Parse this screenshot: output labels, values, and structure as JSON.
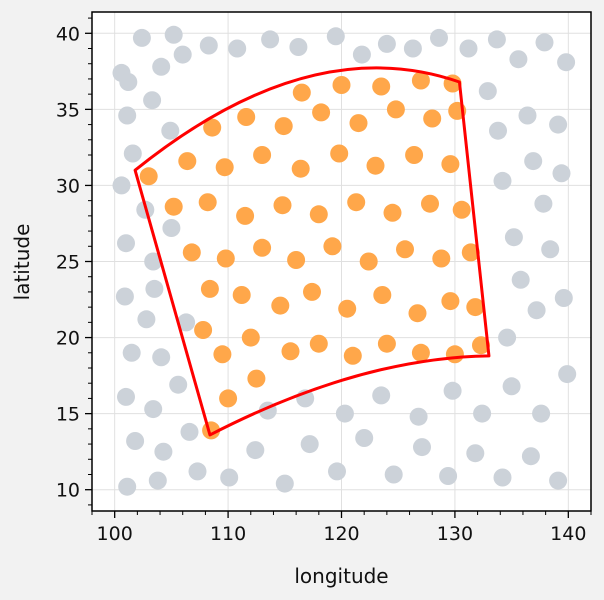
{
  "chart_data": {
    "type": "scatter",
    "title": "",
    "xlabel": "longitude",
    "ylabel": "latitude",
    "xlim": [
      98,
      142
    ],
    "ylim": [
      8.6,
      41.4
    ],
    "xticks": [
      100,
      110,
      120,
      130,
      140
    ],
    "yticks": [
      10,
      15,
      20,
      25,
      30,
      35,
      40
    ],
    "grid": true,
    "x_minor_step": 2,
    "y_minor_step": 1,
    "series": [
      {
        "points": [
          [
            102.4,
            39.7
          ],
          [
            105.2,
            39.9
          ],
          [
            100.6,
            37.4
          ],
          [
            104.1,
            37.8
          ],
          [
            101.2,
            36.8
          ],
          [
            106.0,
            38.6
          ],
          [
            108.3,
            39.2
          ],
          [
            110.8,
            39.0
          ],
          [
            113.7,
            39.6
          ],
          [
            116.2,
            39.1
          ],
          [
            119.5,
            39.8
          ],
          [
            121.8,
            38.6
          ],
          [
            124.0,
            39.3
          ],
          [
            126.3,
            39.0
          ],
          [
            128.6,
            39.7
          ],
          [
            131.2,
            39.0
          ],
          [
            133.7,
            39.6
          ],
          [
            135.6,
            38.3
          ],
          [
            137.9,
            39.4
          ],
          [
            139.8,
            38.1
          ],
          [
            101.1,
            34.6
          ],
          [
            103.3,
            35.6
          ],
          [
            104.9,
            33.6
          ],
          [
            101.6,
            32.1
          ],
          [
            100.6,
            30.0
          ],
          [
            102.7,
            28.4
          ],
          [
            101.0,
            26.2
          ],
          [
            103.4,
            25.0
          ],
          [
            100.9,
            22.7
          ],
          [
            102.8,
            21.2
          ],
          [
            101.5,
            19.0
          ],
          [
            104.1,
            18.7
          ],
          [
            101.0,
            16.1
          ],
          [
            103.4,
            15.3
          ],
          [
            105.6,
            16.9
          ],
          [
            101.8,
            13.2
          ],
          [
            104.3,
            12.5
          ],
          [
            106.6,
            13.8
          ],
          [
            101.1,
            10.2
          ],
          [
            103.8,
            10.6
          ],
          [
            107.3,
            11.2
          ],
          [
            110.1,
            10.8
          ],
          [
            112.4,
            12.6
          ],
          [
            115.0,
            10.4
          ],
          [
            117.2,
            13.0
          ],
          [
            119.6,
            11.2
          ],
          [
            122.0,
            13.4
          ],
          [
            124.6,
            11.0
          ],
          [
            127.1,
            12.8
          ],
          [
            129.4,
            10.9
          ],
          [
            131.8,
            12.4
          ],
          [
            134.2,
            10.8
          ],
          [
            136.7,
            12.2
          ],
          [
            139.1,
            10.6
          ],
          [
            113.5,
            15.2
          ],
          [
            116.8,
            16.0
          ],
          [
            120.3,
            15.0
          ],
          [
            123.5,
            16.2
          ],
          [
            126.8,
            14.8
          ],
          [
            129.8,
            16.5
          ],
          [
            132.4,
            15.0
          ],
          [
            135.0,
            16.8
          ],
          [
            137.6,
            15.0
          ],
          [
            139.9,
            17.6
          ],
          [
            134.6,
            20.0
          ],
          [
            137.2,
            21.8
          ],
          [
            139.6,
            22.6
          ],
          [
            135.8,
            23.8
          ],
          [
            138.4,
            25.8
          ],
          [
            135.2,
            26.6
          ],
          [
            137.8,
            28.8
          ],
          [
            134.2,
            30.3
          ],
          [
            136.9,
            31.6
          ],
          [
            139.4,
            30.8
          ],
          [
            133.8,
            33.6
          ],
          [
            136.4,
            34.6
          ],
          [
            139.1,
            34.0
          ],
          [
            132.9,
            36.2
          ],
          [
            103.5,
            23.2
          ],
          [
            105.0,
            27.2
          ],
          [
            106.3,
            21.0
          ]
        ]
      },
      {
        "points": [
          [
            108.5,
            13.9
          ],
          [
            110.0,
            16.0
          ],
          [
            112.5,
            17.3
          ],
          [
            109.5,
            18.9
          ],
          [
            112.0,
            20.0
          ],
          [
            115.5,
            19.1
          ],
          [
            118.0,
            19.6
          ],
          [
            121.0,
            18.8
          ],
          [
            124.0,
            19.6
          ],
          [
            127.0,
            19.0
          ],
          [
            130.0,
            18.9
          ],
          [
            132.3,
            19.5
          ],
          [
            107.8,
            20.5
          ],
          [
            108.4,
            23.2
          ],
          [
            111.2,
            22.8
          ],
          [
            114.6,
            22.1
          ],
          [
            117.4,
            23.0
          ],
          [
            120.5,
            21.9
          ],
          [
            123.6,
            22.8
          ],
          [
            126.7,
            21.6
          ],
          [
            129.6,
            22.4
          ],
          [
            131.8,
            22.0
          ],
          [
            106.8,
            25.6
          ],
          [
            109.8,
            25.2
          ],
          [
            113.0,
            25.9
          ],
          [
            116.0,
            25.1
          ],
          [
            119.2,
            26.0
          ],
          [
            122.4,
            25.0
          ],
          [
            125.6,
            25.8
          ],
          [
            128.8,
            25.2
          ],
          [
            131.4,
            25.6
          ],
          [
            105.2,
            28.6
          ],
          [
            108.2,
            28.9
          ],
          [
            111.5,
            28.0
          ],
          [
            114.8,
            28.7
          ],
          [
            118.0,
            28.1
          ],
          [
            121.3,
            28.9
          ],
          [
            124.5,
            28.2
          ],
          [
            127.8,
            28.8
          ],
          [
            130.6,
            28.4
          ],
          [
            103.0,
            30.6
          ],
          [
            106.4,
            31.6
          ],
          [
            109.7,
            31.2
          ],
          [
            113.0,
            32.0
          ],
          [
            116.4,
            31.1
          ],
          [
            119.8,
            32.1
          ],
          [
            123.0,
            31.3
          ],
          [
            126.4,
            32.0
          ],
          [
            129.6,
            31.4
          ],
          [
            108.6,
            33.8
          ],
          [
            111.6,
            34.5
          ],
          [
            114.9,
            33.9
          ],
          [
            118.2,
            34.8
          ],
          [
            121.5,
            34.1
          ],
          [
            124.8,
            35.0
          ],
          [
            128.0,
            34.4
          ],
          [
            130.2,
            34.9
          ],
          [
            116.5,
            36.1
          ],
          [
            120.0,
            36.6
          ],
          [
            123.5,
            36.5
          ],
          [
            127.0,
            36.9
          ],
          [
            129.8,
            36.7
          ]
        ]
      }
    ],
    "outline": {
      "corners": [
        [
          101.8,
          31.0
        ],
        [
          130.4,
          36.8
        ],
        [
          133.0,
          18.8
        ],
        [
          108.4,
          13.6
        ]
      ]
    }
  },
  "colors": {
    "background": "#f2f2f2",
    "plot_background": "#ffffff",
    "background_points": "#ccd2d9",
    "region_points": "#ffa74a",
    "outline": "#ff0000",
    "grid": "#e0e0e0",
    "axis": "#000000"
  }
}
